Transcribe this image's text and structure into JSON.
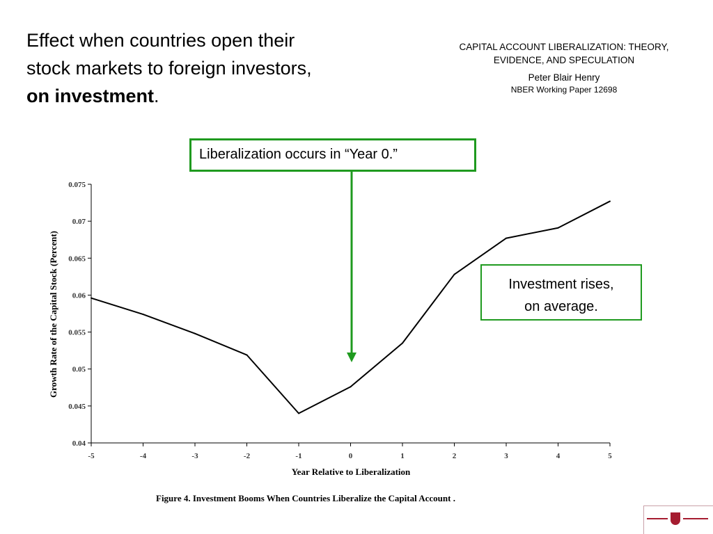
{
  "slide": {
    "title_line1": "Effect when countries open their",
    "title_line2": "stock markets to foreign investors,",
    "title_bold": "on investment",
    "title_end": "."
  },
  "reference": {
    "line1": "CAPITAL ACCOUNT LIBERALIZATION: THEORY,",
    "line2": "EVIDENCE, AND SPECULATION",
    "author": "Peter Blair Henry",
    "paper": "NBER Working Paper 12698"
  },
  "callouts": {
    "year0": "Liberalization occurs in “Year 0.”",
    "rise_line1": "Investment rises,",
    "rise_line2": "on average."
  },
  "colors": {
    "callout_border": "#1f9a1f",
    "arrow": "#1f9a1f",
    "line": "#000000",
    "logo": "#a51c30"
  },
  "logo": {
    "icon": "harvard-kennedy-school-logo"
  },
  "chart_data": {
    "type": "line",
    "title": "Figure 4. Investment Booms When Countries Liberalize the Capital Account .",
    "xlabel": "Year Relative to Liberalization",
    "ylabel": "Growth Rate of the Capital Stock (Percent)",
    "x": [
      -5,
      -4,
      -3,
      -2,
      -1,
      0,
      1,
      2,
      3,
      4,
      5
    ],
    "x_tick_labels": [
      "-5",
      "-4",
      "-3",
      "-2",
      "-1",
      "0",
      "1",
      "2",
      "3",
      "4",
      "5"
    ],
    "y_ticks": [
      0.04,
      0.045,
      0.05,
      0.055,
      0.06,
      0.065,
      0.07,
      0.075
    ],
    "y_tick_labels": [
      "0.04",
      "0.045",
      "0.05",
      "0.055",
      "0.06",
      "0.065",
      "0.07",
      "0.075"
    ],
    "xlim": [
      -5,
      5
    ],
    "ylim": [
      0.04,
      0.075
    ],
    "grid": false,
    "legend": "none",
    "series": [
      {
        "values": [
          0.0596,
          0.0574,
          0.0548,
          0.0519,
          0.044,
          0.0476,
          0.0535,
          0.0628,
          0.0677,
          0.0691,
          0.0727
        ]
      }
    ]
  }
}
